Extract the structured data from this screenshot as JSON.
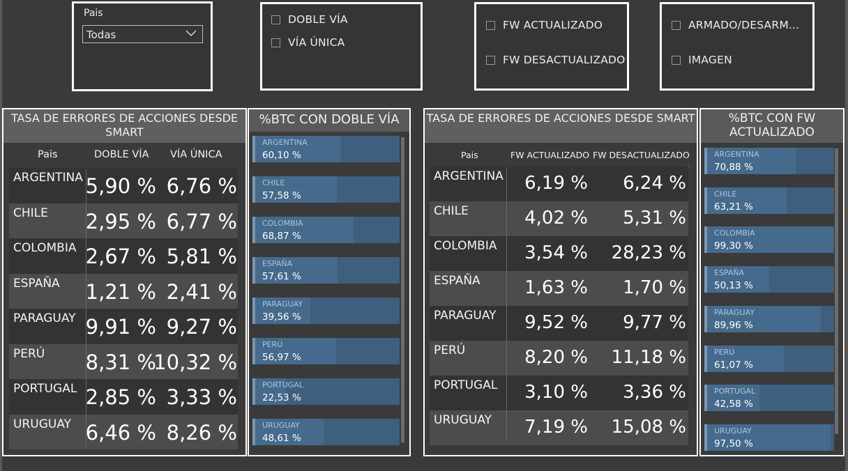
{
  "slicers": {
    "pais": {
      "label": "Pais",
      "selected": "Todas"
    },
    "via": {
      "options": [
        "DOBLE VÍA",
        "VÍA ÚNICA"
      ]
    },
    "fw": {
      "options": [
        "FW ACTUALIZADO",
        "FW DESACTUALIZADO"
      ]
    },
    "armado": {
      "options": [
        "ARMADO/DESARM...",
        "IMAGEN"
      ]
    }
  },
  "table_via": {
    "title": "TASA DE ERRORES DE ACCIONES DESDE SMART",
    "columns": [
      "Pais",
      "DOBLE VÍA",
      "VÍA ÚNICA"
    ],
    "rows": [
      [
        "ARGENTINA",
        "5,90 %",
        "6,76 %"
      ],
      [
        "CHILE",
        "2,95 %",
        "6,77 %"
      ],
      [
        "COLOMBIA",
        "2,67 %",
        "5,81 %"
      ],
      [
        "ESPAÑA",
        "1,21 %",
        "2,41 %"
      ],
      [
        "PARAGUAY",
        "9,91 %",
        "9,27 %"
      ],
      [
        "PERÚ",
        "8,31 %",
        "10,32 %"
      ],
      [
        "PORTUGAL",
        "2,85 %",
        "3,33 %"
      ],
      [
        "URUGUAY",
        "6,46 %",
        "8,26 %"
      ]
    ]
  },
  "bars_via": {
    "title": "%BTC CON DOBLE VÍA",
    "items": [
      {
        "name": "ARGENTINA",
        "label": "60,10 %",
        "value": 60.1
      },
      {
        "name": "CHILE",
        "label": "57,58 %",
        "value": 57.58
      },
      {
        "name": "COLOMBIA",
        "label": "68,87 %",
        "value": 68.87
      },
      {
        "name": "ESPAÑA",
        "label": "57,61 %",
        "value": 57.61
      },
      {
        "name": "PARAGUAY",
        "label": "39,56 %",
        "value": 39.56
      },
      {
        "name": "PERÚ",
        "label": "56,97 %",
        "value": 56.97
      },
      {
        "name": "PORTUGAL",
        "label": "22,53 %",
        "value": 22.53
      },
      {
        "name": "URUGUAY",
        "label": "48,61 %",
        "value": 48.61
      }
    ]
  },
  "table_fw": {
    "title": "TASA DE ERRORES DE ACCIONES DESDE SMART",
    "columns": [
      "Pais",
      "FW ACTUALIZADO",
      "FW DESACTUALIZADO"
    ],
    "rows": [
      [
        "ARGENTINA",
        "6,19 %",
        "6,24 %"
      ],
      [
        "CHILE",
        "4,02 %",
        "5,31 %"
      ],
      [
        "COLOMBIA",
        "3,54 %",
        "28,23 %"
      ],
      [
        "ESPAÑA",
        "1,63 %",
        "1,70 %"
      ],
      [
        "PARAGUAY",
        "9,52 %",
        "9,77 %"
      ],
      [
        "PERÚ",
        "8,20 %",
        "11,18 %"
      ],
      [
        "PORTUGAL",
        "3,10 %",
        "3,36 %"
      ],
      [
        "URUGUAY",
        "7,19 %",
        "15,08 %"
      ]
    ]
  },
  "bars_fw": {
    "title": "%BTC CON FW ACTUALIZADO",
    "items": [
      {
        "name": "ARGENTINA",
        "label": "70,88 %",
        "value": 70.88
      },
      {
        "name": "CHILE",
        "label": "63,21 %",
        "value": 63.21
      },
      {
        "name": "COLOMBIA",
        "label": "99,30 %",
        "value": 99.3
      },
      {
        "name": "ESPAÑA",
        "label": "50,13 %",
        "value": 50.13
      },
      {
        "name": "PARAGUAY",
        "label": "89,96 %",
        "value": 89.96
      },
      {
        "name": "PERÚ",
        "label": "61,07 %",
        "value": 61.07
      },
      {
        "name": "PORTUGAL",
        "label": "42,58 %",
        "value": 42.58
      },
      {
        "name": "URUGUAY",
        "label": "97,50 %",
        "value": 97.5
      }
    ]
  },
  "colors": {
    "background": "#3a3a3a",
    "header": "#5f5f5f",
    "bar": "#3e5f7d",
    "accent": "#4e6f93"
  }
}
